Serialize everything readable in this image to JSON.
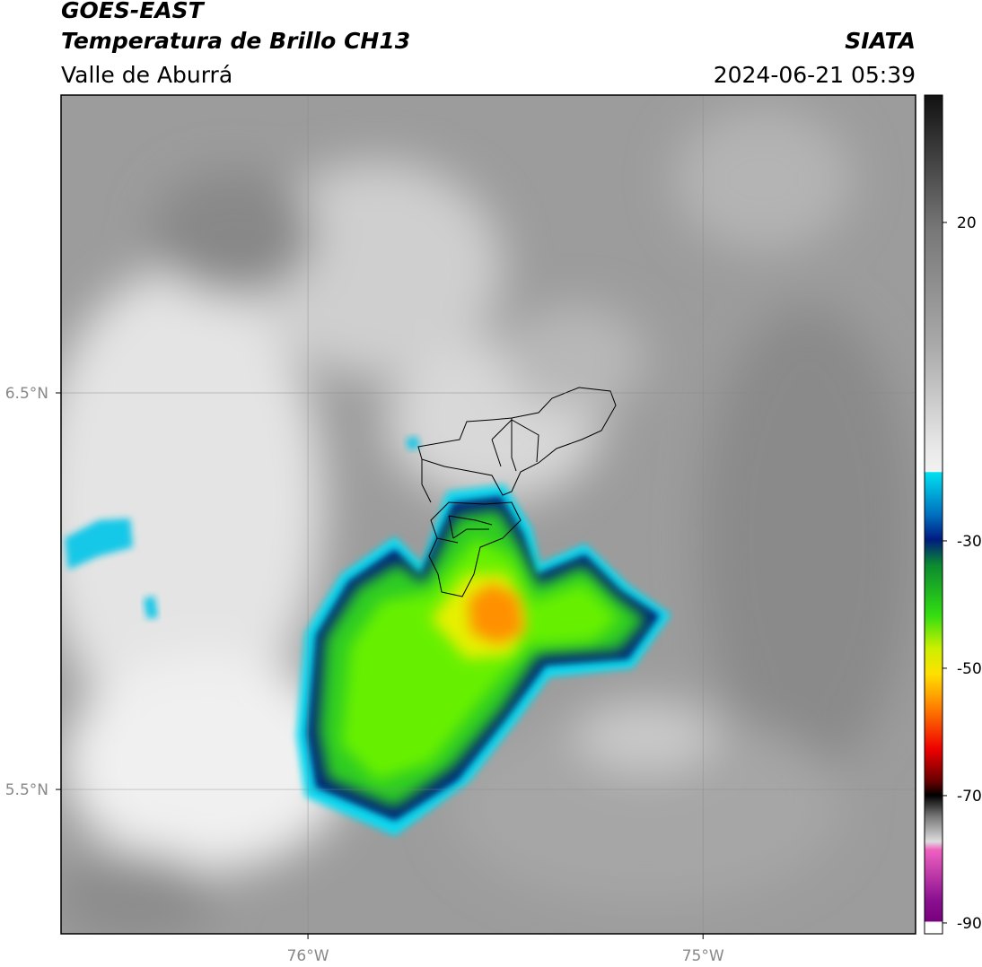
{
  "header": {
    "title": "GOES-EAST",
    "subtitle": "Temperatura de Brillo CH13",
    "region": "Valle de Aburrá",
    "source": "SIATA",
    "timestamp": "2024-06-21 05:39"
  },
  "map": {
    "xlim": [
      -76.625,
      -74.462
    ],
    "ylim": [
      5.136,
      7.251
    ],
    "xticks": [
      {
        "value": -76,
        "label": "76°W"
      },
      {
        "value": -75,
        "label": "75°W"
      }
    ],
    "yticks": [
      {
        "value": 6.5,
        "label": "6.5°N"
      },
      {
        "value": 5.5,
        "label": "5.5°N"
      }
    ],
    "grid": true
  },
  "colorbar": {
    "lim": [
      -91.7,
      40
    ],
    "ticks": [
      20,
      -30,
      -50,
      -70,
      -90
    ]
  }
}
